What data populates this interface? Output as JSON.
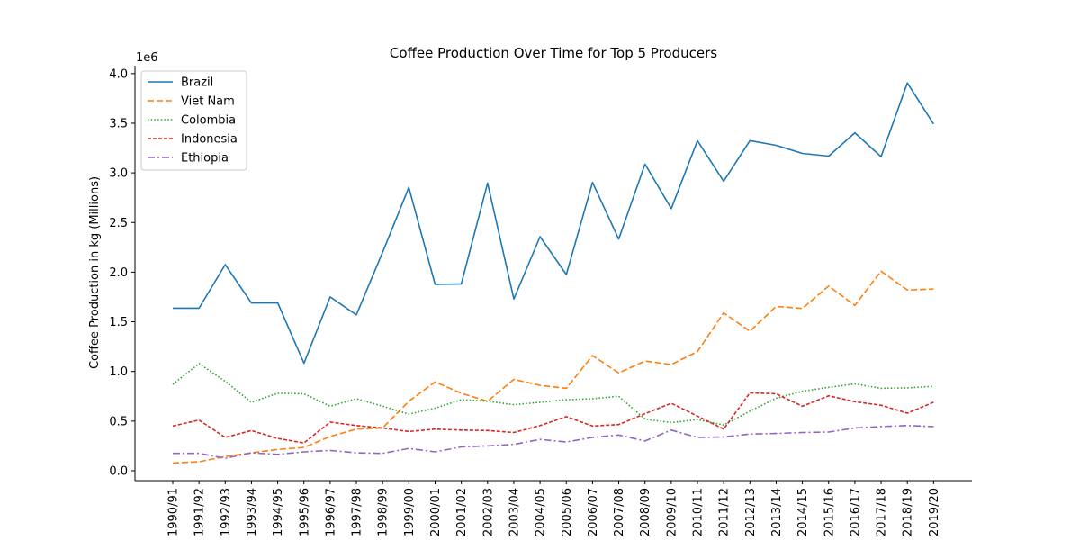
{
  "chart_data": {
    "type": "line",
    "title": "Coffee Production Over Time for Top 5 Producers",
    "xlabel": "",
    "ylabel": "Coffee Production in kg (Millions)",
    "y_offset_label": "1e6",
    "ylim": [
      -100000,
      4080000
    ],
    "yticks": [
      0,
      500000,
      1000000,
      1500000,
      2000000,
      2500000,
      3000000,
      3500000,
      4000000
    ],
    "ytick_labels": [
      "0.0",
      "0.5",
      "1.0",
      "1.5",
      "2.0",
      "2.5",
      "3.0",
      "3.5",
      "4.0"
    ],
    "grid": false,
    "legend_position": "top-left",
    "categories": [
      "1990/91",
      "1991/92",
      "1992/93",
      "1993/94",
      "1994/95",
      "1995/96",
      "1996/97",
      "1997/98",
      "1998/99",
      "1999/00",
      "2000/01",
      "2001/02",
      "2002/03",
      "2003/04",
      "2004/05",
      "2005/06",
      "2006/07",
      "2007/08",
      "2008/09",
      "2009/10",
      "2010/11",
      "2011/12",
      "2012/13",
      "2013/14",
      "2014/15",
      "2015/16",
      "2016/17",
      "2017/18",
      "2018/19",
      "2019/20"
    ],
    "series": [
      {
        "name": "Brazil",
        "color": "#1f77b4",
        "dash": "solid",
        "values": [
          1637000,
          1637000,
          2076000,
          1690000,
          1691000,
          1082000,
          1751000,
          1570000,
          2201000,
          2853000,
          1877000,
          1881000,
          2898000,
          1730000,
          2357000,
          1976000,
          2904000,
          2333000,
          3088000,
          2640000,
          3324000,
          2916000,
          3325000,
          3278000,
          3196000,
          3169000,
          3404000,
          3163000,
          3906000,
          3492000
        ]
      },
      {
        "name": "Viet Nam",
        "color": "#ff7f0e",
        "dash": "dashed",
        "values": [
          78000,
          90000,
          143000,
          180000,
          215000,
          235000,
          345000,
          420000,
          430000,
          700000,
          895000,
          780000,
          700000,
          920000,
          860000,
          830000,
          1160000,
          985000,
          1105000,
          1070000,
          1200000,
          1590000,
          1405000,
          1655000,
          1635000,
          1860000,
          1665000,
          2010000,
          1820000,
          1830000
        ]
      },
      {
        "name": "Colombia",
        "color": "#2ca02c",
        "dash": "dotted",
        "values": [
          870000,
          1080000,
          900000,
          690000,
          780000,
          775000,
          650000,
          725000,
          650000,
          570000,
          630000,
          715000,
          700000,
          665000,
          690000,
          715000,
          725000,
          750000,
          520000,
          485000,
          515000,
          460000,
          600000,
          730000,
          800000,
          840000,
          875000,
          830000,
          835000,
          850000
        ]
      },
      {
        "name": "Indonesia",
        "color": "#d62728",
        "dash": "densely-dashed",
        "values": [
          450000,
          510000,
          335000,
          405000,
          325000,
          280000,
          490000,
          455000,
          430000,
          395000,
          420000,
          410000,
          405000,
          385000,
          455000,
          545000,
          450000,
          465000,
          575000,
          680000,
          550000,
          420000,
          785000,
          775000,
          650000,
          755000,
          695000,
          660000,
          580000,
          690000
        ]
      },
      {
        "name": "Ethiopia",
        "color": "#9467bd",
        "dash": "dashdot",
        "values": [
          175000,
          175000,
          125000,
          180000,
          165000,
          190000,
          205000,
          180000,
          175000,
          225000,
          190000,
          240000,
          250000,
          265000,
          315000,
          290000,
          335000,
          360000,
          300000,
          410000,
          335000,
          340000,
          370000,
          375000,
          385000,
          390000,
          430000,
          445000,
          455000,
          445000
        ]
      }
    ]
  }
}
